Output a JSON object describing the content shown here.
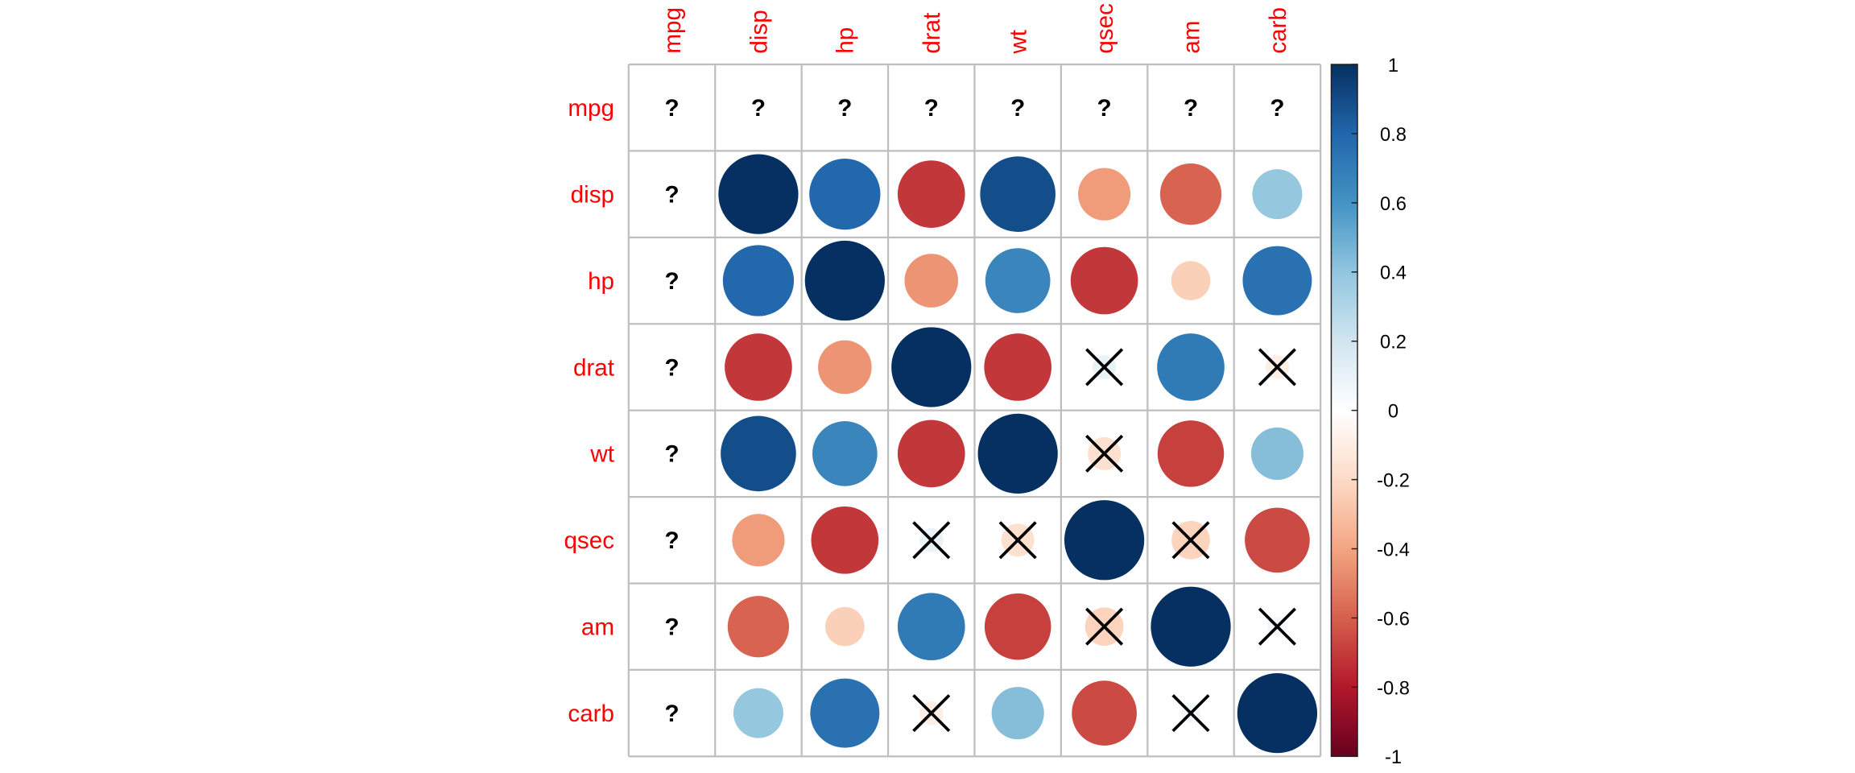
{
  "chart_data": {
    "type": "heatmap",
    "variables": [
      "mpg",
      "disp",
      "hp",
      "drat",
      "wt",
      "qsec",
      "am",
      "carb"
    ],
    "row_labels": [
      "mpg",
      "disp",
      "hp",
      "drat",
      "wt",
      "qsec",
      "am",
      "carb"
    ],
    "col_labels": [
      "mpg",
      "disp",
      "hp",
      "drat",
      "wt",
      "qsec",
      "am",
      "carb"
    ],
    "missing_symbol": "?",
    "insignificant_symbol": "×",
    "matrix": [
      [
        null,
        null,
        null,
        null,
        null,
        null,
        null,
        null
      ],
      [
        null,
        1.0,
        0.79,
        -0.71,
        0.89,
        -0.43,
        -0.59,
        0.39
      ],
      [
        null,
        0.79,
        1.0,
        -0.45,
        0.66,
        -0.71,
        -0.24,
        0.75
      ],
      [
        null,
        -0.71,
        -0.45,
        1.0,
        -0.71,
        0.09,
        0.71,
        -0.09
      ],
      [
        null,
        0.89,
        0.66,
        -0.71,
        1.0,
        -0.17,
        -0.69,
        0.43
      ],
      [
        null,
        -0.43,
        -0.71,
        0.09,
        -0.17,
        1.0,
        -0.23,
        -0.66
      ],
      [
        null,
        -0.59,
        -0.24,
        0.71,
        -0.69,
        -0.23,
        1.0,
        0.06
      ],
      [
        null,
        0.39,
        0.75,
        -0.09,
        0.43,
        -0.66,
        0.06,
        1.0
      ]
    ],
    "insignificant": [
      [
        false,
        false,
        false,
        false,
        false,
        false,
        false,
        false
      ],
      [
        false,
        false,
        false,
        false,
        false,
        false,
        false,
        false
      ],
      [
        false,
        false,
        false,
        false,
        false,
        false,
        false,
        false
      ],
      [
        false,
        false,
        false,
        false,
        false,
        true,
        false,
        true
      ],
      [
        false,
        false,
        false,
        false,
        false,
        true,
        false,
        false
      ],
      [
        false,
        false,
        false,
        true,
        true,
        false,
        true,
        false
      ],
      [
        false,
        false,
        false,
        false,
        false,
        true,
        false,
        true
      ],
      [
        false,
        false,
        false,
        true,
        false,
        false,
        true,
        false
      ]
    ],
    "colorbar": {
      "range": [
        -1,
        1
      ],
      "ticks": [
        "1",
        "0.8",
        "0.6",
        "0.4",
        "0.2",
        "0",
        "-0.2",
        "-0.4",
        "-0.6",
        "-0.8",
        "-1"
      ],
      "colors": [
        "#67001F",
        "#B2182B",
        "#D6604D",
        "#F4A582",
        "#FDDBC7",
        "#FFFFFF",
        "#D1E5F0",
        "#92C5DE",
        "#4393C3",
        "#2166AC",
        "#053061"
      ]
    },
    "label_color": "#FF0000",
    "grid_color": "#BEBEBE",
    "legend_position": "right"
  }
}
